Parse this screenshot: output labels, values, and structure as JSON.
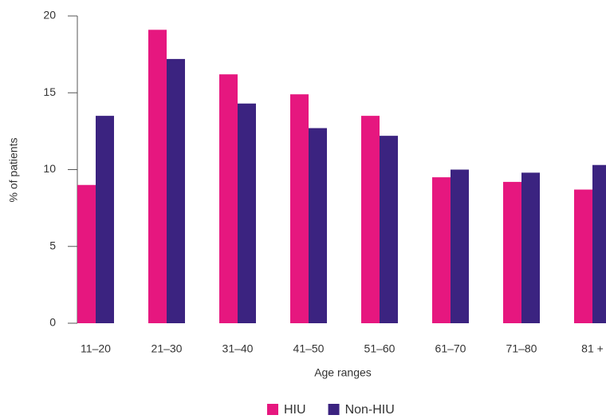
{
  "chart_data": {
    "type": "bar",
    "categories": [
      "11–20",
      "21–30",
      "31–40",
      "41–50",
      "51–60",
      "61–70",
      "71–80",
      "81 +"
    ],
    "series": [
      {
        "name": "HIU",
        "color": "#e6177f",
        "values": [
          9.0,
          19.1,
          16.2,
          14.9,
          13.5,
          9.5,
          9.2,
          8.7
        ]
      },
      {
        "name": "Non-HIU",
        "color": "#3b2380",
        "values": [
          13.5,
          17.2,
          14.3,
          12.7,
          12.2,
          10.0,
          9.8,
          10.3
        ]
      }
    ],
    "xlabel": "Age ranges",
    "ylabel": "% of patients",
    "ylim": [
      0,
      20
    ],
    "yticks": [
      0,
      5,
      10,
      15,
      20
    ],
    "grid": false,
    "legend": "bottom"
  }
}
